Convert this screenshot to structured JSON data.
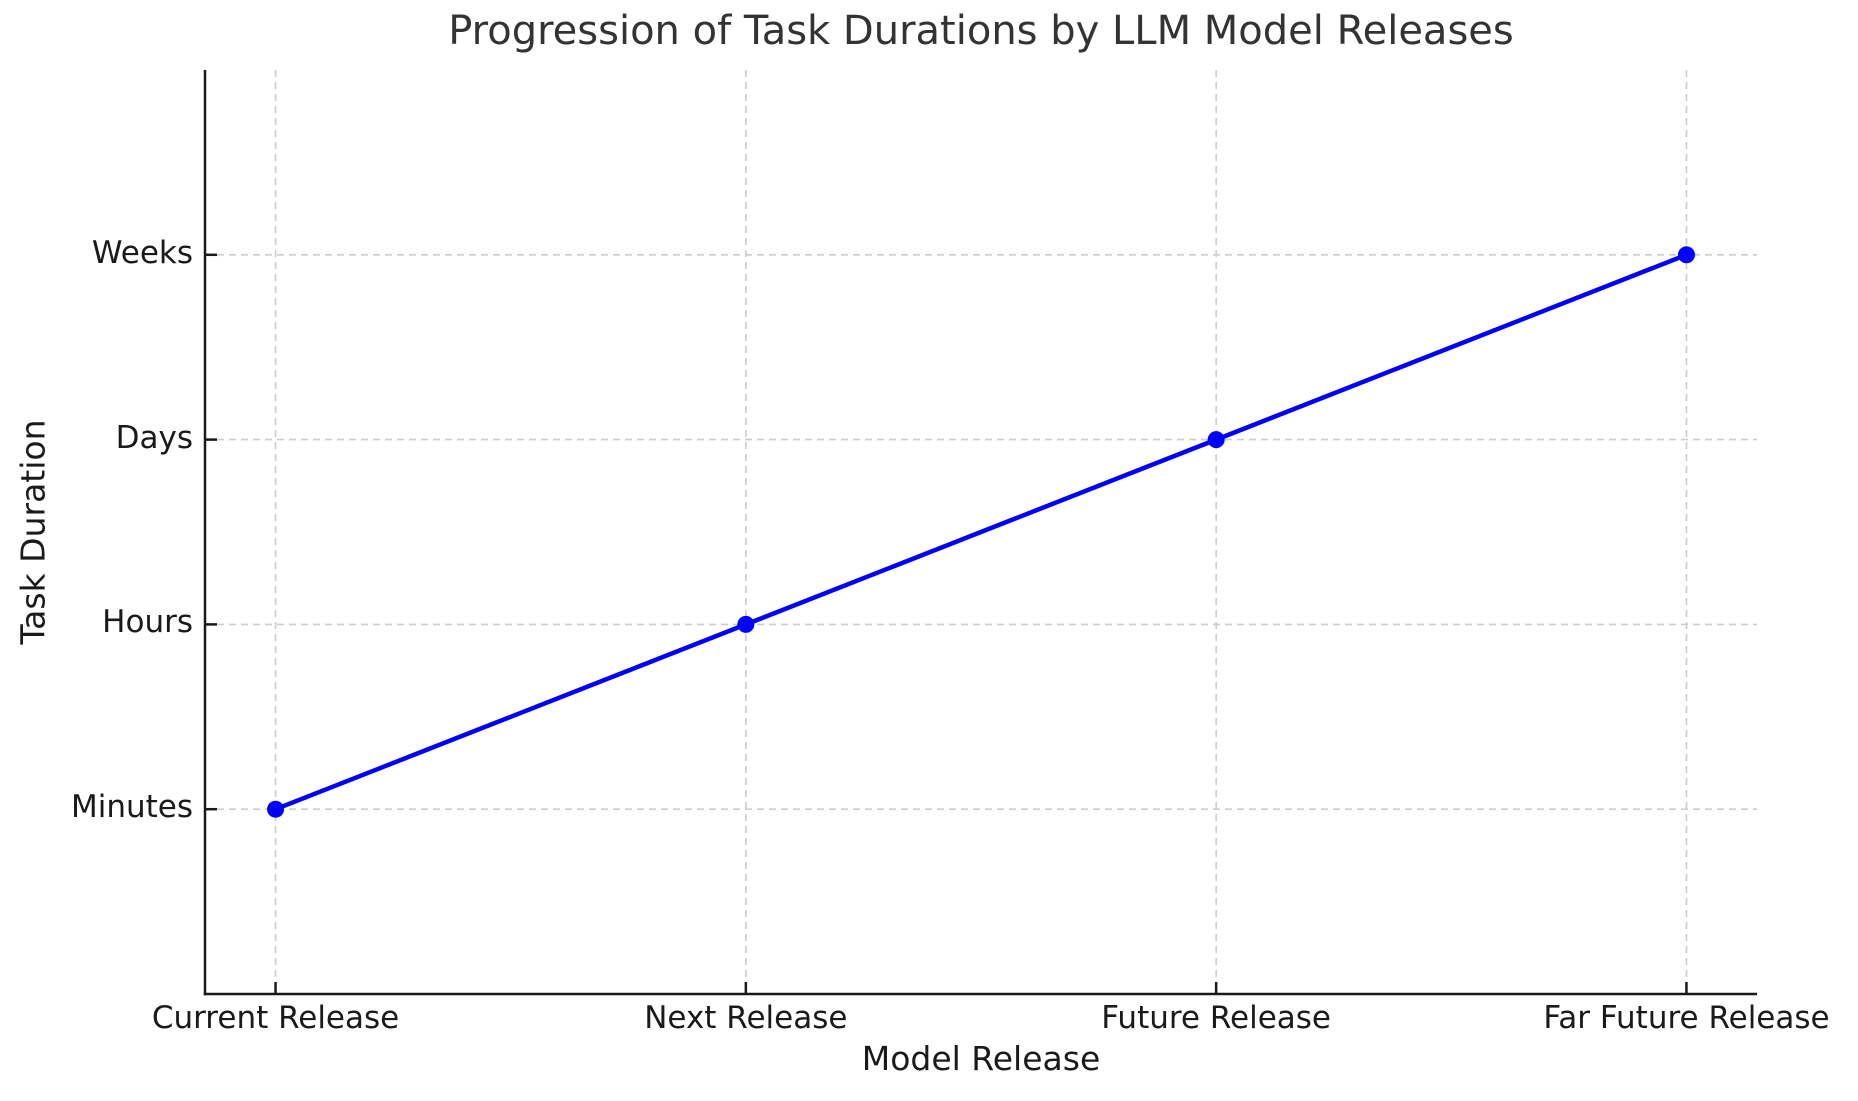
{
  "chart_data": {
    "type": "line",
    "title": "Progression of Task Durations by LLM Model Releases",
    "xlabel": "Model Release",
    "ylabel": "Task Duration",
    "categories": [
      "Current Release",
      "Next Release",
      "Future Release",
      "Far Future Release"
    ],
    "x": [
      0,
      1,
      2,
      3
    ],
    "series": [
      {
        "name": "Task Duration",
        "values": [
          1,
          2,
          3,
          4
        ]
      }
    ],
    "ytick_positions": [
      1,
      2,
      3,
      4
    ],
    "ytick_labels": [
      "Minutes",
      "Hours",
      "Days",
      "Weeks"
    ],
    "xlim": [
      -0.15,
      3.15
    ],
    "ylim": [
      0,
      5
    ],
    "grid": true,
    "grid_style": "dashed",
    "legend": false,
    "tick_direction": "in",
    "colors": {
      "line": "#0000ff",
      "marker": "#0000ff",
      "grid": "#cccccc",
      "spine": "#1a1a1a",
      "tick_mark": "#1a1a1a",
      "title_text": "#333333",
      "label_text": "#1a1a1a",
      "background": "#ffffff"
    }
  }
}
